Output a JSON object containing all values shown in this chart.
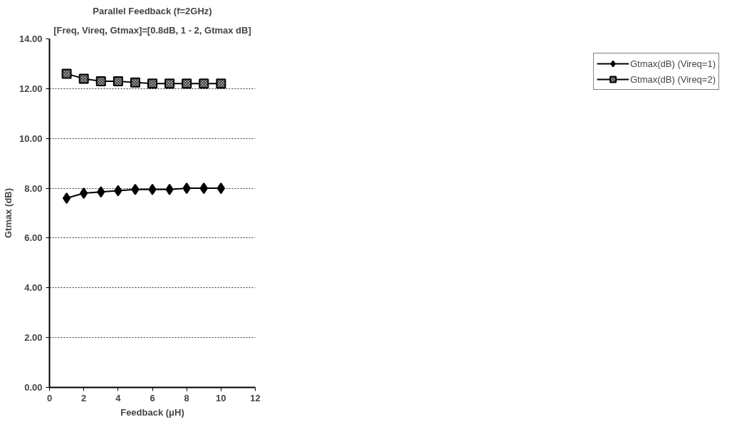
{
  "chart_data": {
    "type": "line",
    "title": "Parallel Feedback (f=2GHz)",
    "subtitle": "[Freq, Vireq, Gtmax]=[0.8dB, 1 - 2, Gtmax dB]",
    "xlabel": "Feedback (μH)",
    "ylabel": "Gtmax (dB)",
    "x": [
      1,
      2,
      3,
      4,
      5,
      6,
      7,
      8,
      9,
      10
    ],
    "series": [
      {
        "name": "Gtmax(dB) (Vireq=1)",
        "color": "#000000",
        "marker": "diamond",
        "values": [
          7.6,
          7.8,
          7.85,
          7.9,
          7.95,
          7.95,
          7.95,
          8.0,
          8.0,
          8.0
        ]
      },
      {
        "name": "Gtmax(dB) (Vireq=2)",
        "color": "#000000",
        "marker": "square",
        "values": [
          12.6,
          12.4,
          12.3,
          12.3,
          12.25,
          12.2,
          12.2,
          12.2,
          12.2,
          12.2
        ]
      }
    ],
    "xlim": [
      0,
      12
    ],
    "xticks": [
      0,
      2,
      4,
      6,
      8,
      10,
      12
    ],
    "ylim": [
      0,
      14
    ],
    "yticks": [
      {
        "value": 0,
        "label": "0.00"
      },
      {
        "value": 2,
        "label": "2.00"
      },
      {
        "value": 4,
        "label": "4.00"
      },
      {
        "value": 6,
        "label": "6.00"
      },
      {
        "value": 8,
        "label": "8.00"
      },
      {
        "value": 10,
        "label": "10.00"
      },
      {
        "value": 12,
        "label": "12.00"
      },
      {
        "value": 14,
        "label": "14.00"
      }
    ],
    "grid": "y",
    "legend": "right",
    "line_style": "solid"
  }
}
